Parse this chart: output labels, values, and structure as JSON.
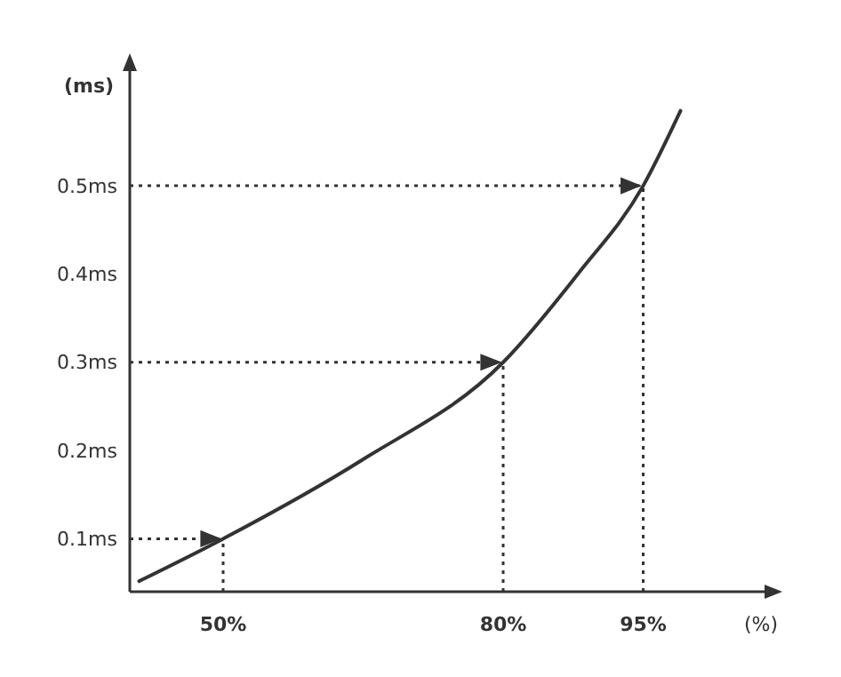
{
  "chart_data": {
    "type": "line",
    "xlabel": "(%)",
    "ylabel": "(ms)",
    "x": [
      41,
      50,
      65,
      80,
      88,
      95,
      99
    ],
    "series": [
      {
        "color": "#333333",
        "values": [
          0.052,
          0.1,
          0.19,
          0.3,
          0.4,
          0.5,
          0.585
        ]
      }
    ],
    "xlim": [
      40,
      108
    ],
    "ylim": [
      0.04,
      0.63
    ],
    "xticks": [
      {
        "value": 50,
        "label": "50%"
      },
      {
        "value": 80,
        "label": "80%"
      },
      {
        "value": 95,
        "label": "95%"
      }
    ],
    "yticks": [
      {
        "value": 0.1,
        "label": "0.1ms"
      },
      {
        "value": 0.2,
        "label": "0.2ms"
      },
      {
        "value": 0.3,
        "label": "0.3ms"
      },
      {
        "value": 0.4,
        "label": "0.4ms"
      },
      {
        "value": 0.5,
        "label": "0.5ms"
      }
    ],
    "ref_lines": [
      {
        "axis": "y",
        "value": 0.1,
        "line_style": "dotted"
      },
      {
        "axis": "y",
        "value": 0.3,
        "line_style": "dotted"
      },
      {
        "axis": "y",
        "value": 0.5,
        "line_style": "dotted"
      },
      {
        "axis": "x",
        "value": 50,
        "line_style": "dotted"
      },
      {
        "axis": "x",
        "value": 80,
        "line_style": "dotted"
      },
      {
        "axis": "x",
        "value": 95,
        "line_style": "dotted"
      }
    ],
    "grid": false,
    "marker": "none",
    "line_style": "solid"
  }
}
